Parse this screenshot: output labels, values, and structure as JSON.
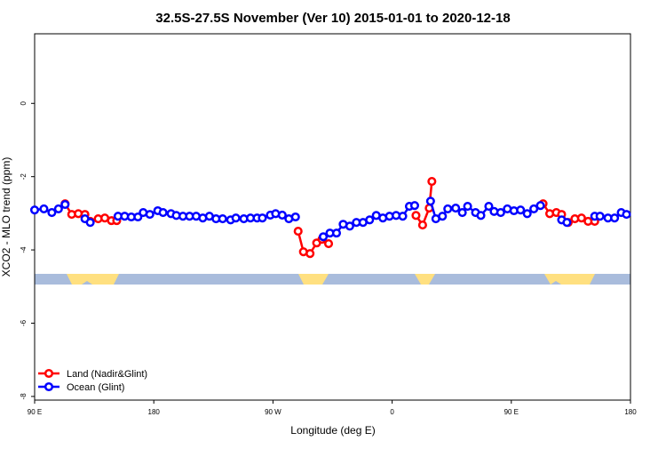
{
  "chart_data": {
    "type": "line",
    "title": "32.5S-27.5S November (Ver 10)   2015-01-01 to 2020-12-18",
    "x_label": "Longitude (deg E)",
    "y_label": "XCO2 - MLO trend (ppm)",
    "xlim": [
      90,
      540
    ],
    "ylim": [
      -8.1,
      1.9
    ],
    "xticks": [
      {
        "value": 90,
        "label": "90 E"
      },
      {
        "value": 180,
        "label": "180"
      },
      {
        "value": 270,
        "label": "90 W"
      },
      {
        "value": 360,
        "label": "0"
      },
      {
        "value": 450,
        "label": "90 E"
      },
      {
        "value": 540,
        "label": "180"
      }
    ],
    "yticks": [
      -8,
      -6,
      -4,
      -2,
      0
    ],
    "legend": "bottom-left",
    "series": [
      {
        "name": "Land (Nadir&Glint)",
        "color": "#ff0000",
        "x": [
          113,
          118,
          123,
          128,
          132,
          138,
          143,
          148,
          152,
          null,
          289,
          293,
          298,
          303,
          307,
          312,
          null,
          378,
          383,
          388,
          390,
          null,
          474,
          479,
          484,
          488,
          493,
          498,
          503,
          508,
          513
        ],
        "values": [
          -2.74,
          -3.03,
          -3.01,
          -3.03,
          -3.22,
          -3.15,
          -3.13,
          -3.2,
          -3.2,
          null,
          -3.49,
          -4.05,
          -4.1,
          -3.81,
          -3.71,
          -3.83,
          null,
          -3.06,
          -3.32,
          -2.86,
          -2.13,
          null,
          -2.74,
          -3.01,
          -2.98,
          -3.03,
          -3.25,
          -3.15,
          -3.13,
          -3.22,
          -3.22
        ]
      },
      {
        "name": "Ocean (Glint)",
        "color": "#0000ff",
        "x": [
          90,
          97,
          103,
          108,
          113,
          null,
          128,
          132,
          null,
          153,
          158,
          163,
          168,
          172,
          177,
          183,
          187,
          193,
          197,
          202,
          207,
          212,
          217,
          222,
          227,
          232,
          238,
          242,
          248,
          253,
          258,
          262,
          268,
          272,
          277,
          282,
          287,
          null,
          308,
          313,
          318,
          323,
          328,
          333,
          338,
          343,
          348,
          353,
          358,
          363,
          368,
          373,
          377,
          null,
          389,
          393,
          398,
          402,
          408,
          413,
          417,
          423,
          427,
          433,
          437,
          442,
          447,
          452,
          457,
          462,
          467,
          472,
          null,
          488,
          492,
          null,
          513,
          517,
          523,
          528,
          533,
          537
        ],
        "values": [
          -2.91,
          -2.88,
          -2.98,
          -2.88,
          -2.76,
          null,
          -3.15,
          -3.25,
          null,
          -3.08,
          -3.08,
          -3.1,
          -3.1,
          -2.98,
          -3.03,
          -2.93,
          -2.98,
          -3.01,
          -3.06,
          -3.08,
          -3.08,
          -3.08,
          -3.13,
          -3.08,
          -3.15,
          -3.15,
          -3.18,
          -3.13,
          -3.15,
          -3.13,
          -3.13,
          -3.13,
          -3.05,
          -3.01,
          -3.05,
          -3.15,
          -3.1,
          null,
          -3.64,
          -3.54,
          -3.54,
          -3.3,
          -3.35,
          -3.25,
          -3.25,
          -3.18,
          -3.06,
          -3.13,
          -3.08,
          -3.06,
          -3.08,
          -2.81,
          -2.79,
          null,
          -2.67,
          -3.15,
          -3.08,
          -2.88,
          -2.86,
          -2.98,
          -2.81,
          -2.98,
          -3.06,
          -2.81,
          -2.95,
          -2.98,
          -2.88,
          -2.93,
          -2.91,
          -3.01,
          -2.88,
          -2.79,
          null,
          -3.18,
          -3.25,
          null,
          -3.08,
          -3.08,
          -3.13,
          -3.13,
          -2.98,
          -3.03
        ]
      }
    ]
  }
}
